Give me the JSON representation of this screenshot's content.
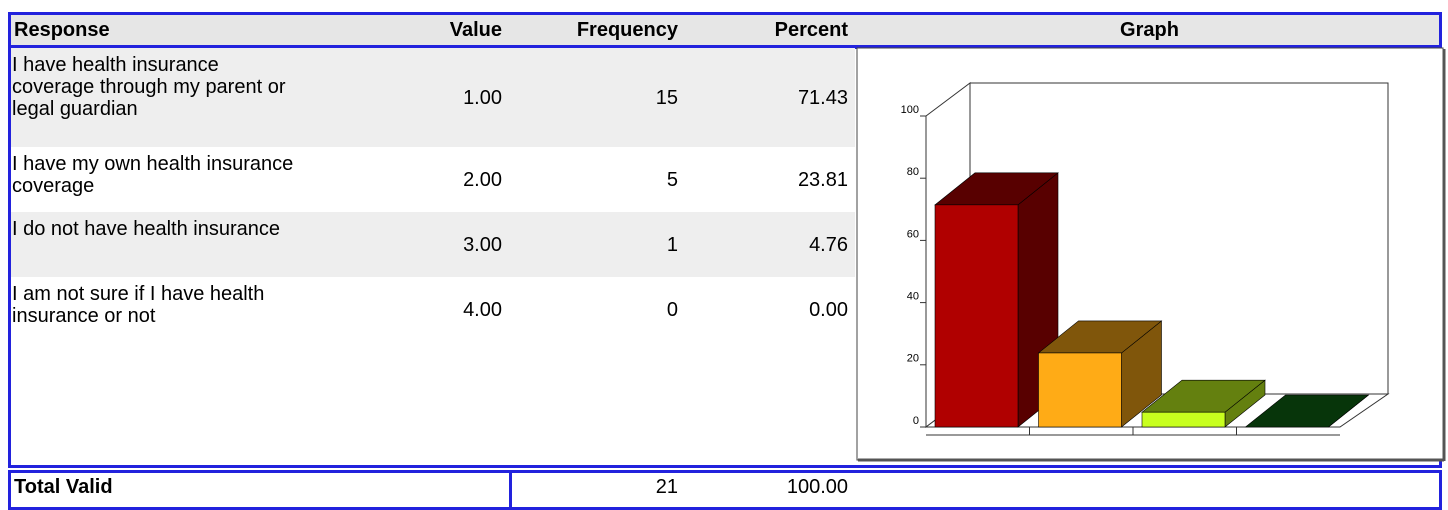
{
  "table": {
    "columns": [
      "Response",
      "Value",
      "Frequency",
      "Percent",
      "Graph"
    ],
    "rows": [
      [
        "I have health insurance coverage through my parent or legal guardian",
        "1.00",
        "15",
        "71.43"
      ],
      [
        "I have my own health insurance coverage",
        "2.00",
        "5",
        "23.81"
      ],
      [
        "I do not have health insurance",
        "3.00",
        "1",
        "4.76"
      ],
      [
        "I am not sure if I have health insurance or not",
        "4.00",
        "0",
        "0.00"
      ]
    ],
    "total": {
      "label": "Total Valid",
      "frequency": "21",
      "percent": "100.00"
    }
  },
  "graph": {
    "type": "bar",
    "values": [
      71.43,
      23.81,
      4.76,
      0
    ],
    "colors": [
      "#b00000",
      "#ffab16",
      "#c8ff1e",
      "#0d6a14"
    ],
    "ylim": [
      0,
      100
    ],
    "yticks": [
      0,
      20,
      40,
      60,
      80,
      100
    ]
  }
}
